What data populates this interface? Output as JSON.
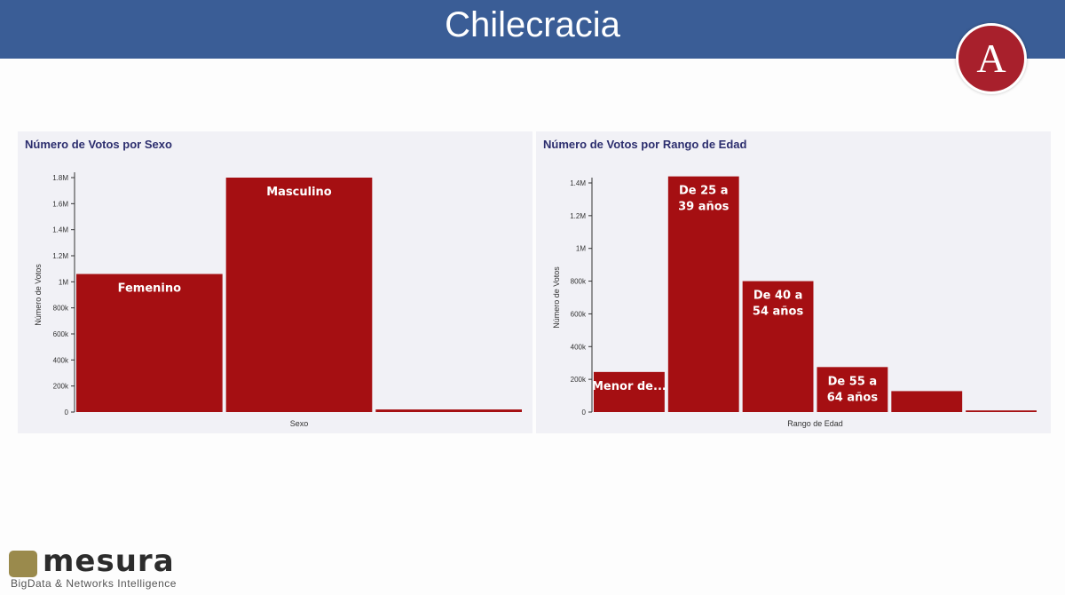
{
  "header": {
    "title": "Chilecracia",
    "logo_letter": "A"
  },
  "chart_data": [
    {
      "type": "bar",
      "title": "Número de Votos por Sexo",
      "xlabel": "Sexo",
      "ylabel": "Número de Votos",
      "ylim": [
        0,
        1800000
      ],
      "yticks": [
        "0",
        "200k",
        "400k",
        "600k",
        "800k",
        "1M",
        "1.2M",
        "1.4M",
        "1.6M",
        "1.8M"
      ],
      "categories": [
        "Femenino",
        "Masculino",
        ""
      ],
      "bar_labels": [
        "Femenino",
        "Masculino",
        ""
      ],
      "values": [
        1060000,
        1800000,
        20000
      ],
      "color": "#a50f12"
    },
    {
      "type": "bar",
      "title": "Número de Votos por Rango de Edad",
      "xlabel": "Rango de Edad",
      "ylabel": "Número de Votos",
      "ylim": [
        0,
        1400000
      ],
      "yticks": [
        "0",
        "200k",
        "400k",
        "600k",
        "800k",
        "1M",
        "1.2M",
        "1.4M"
      ],
      "categories": [
        "Menor de...",
        "De 25 a 39 años",
        "De 40 a 54 años",
        "De 55 a 64 años",
        "",
        ""
      ],
      "bar_labels": [
        [
          "Menor de..."
        ],
        [
          "De 25 a",
          "39 años"
        ],
        [
          "De 40 a",
          "54 años"
        ],
        [
          "De 55 a",
          "64 años"
        ],
        [],
        []
      ],
      "values": [
        245000,
        1440000,
        800000,
        275000,
        128000,
        10000
      ],
      "color": "#a50f12"
    }
  ],
  "footer": {
    "brand": "mesura",
    "tagline": "BigData & Networks Intelligence"
  }
}
